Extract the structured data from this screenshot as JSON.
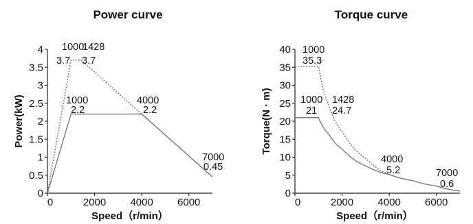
{
  "chart_data": [
    {
      "type": "line",
      "title": "Power curve",
      "xlabel": "Speed（r/min）",
      "ylabel": "Power(kW)",
      "xlim": [
        0,
        7000
      ],
      "ylim": [
        0,
        4
      ],
      "xticks": [
        "0",
        "2000",
        "4000",
        "6000"
      ],
      "yticks": [
        "0",
        "0.5",
        "1",
        "1.5",
        "2",
        "2.5",
        "3",
        "3.5",
        "4"
      ],
      "series": [
        {
          "style": "dotted",
          "x": [
            0,
            1000,
            1428,
            7000
          ],
          "y": [
            0,
            3.7,
            3.7,
            0.45
          ]
        },
        {
          "style": "solid",
          "x": [
            0,
            1000,
            4000,
            7000
          ],
          "y": [
            0,
            2.2,
            2.2,
            0.45
          ]
        }
      ],
      "annotations": [
        {
          "top": "1000",
          "bottom": "3.7"
        },
        {
          "top": "1428",
          "bottom": "3.7"
        },
        {
          "top": "1000",
          "bottom": "2.2"
        },
        {
          "top": "4000",
          "bottom": "2.2"
        },
        {
          "top": "7000",
          "bottom": "0.45"
        }
      ],
      "grid": false
    },
    {
      "type": "line",
      "title": "Torque curve",
      "xlabel": "Speed（r/min）",
      "ylabel": "Torque(N · m)",
      "xlim": [
        0,
        7000
      ],
      "ylim": [
        0,
        40
      ],
      "xticks": [
        "0",
        "2000",
        "4000",
        "6000"
      ],
      "yticks": [
        "0",
        "5",
        "10",
        "15",
        "20",
        "25",
        "30",
        "35",
        "40"
      ],
      "series": [
        {
          "style": "dotted",
          "x": [
            0,
            1000,
            1428,
            2000,
            3000,
            4000
          ],
          "y": [
            35.3,
            35.3,
            24.7,
            17.2,
            9.7,
            5.2
          ]
        },
        {
          "style": "solid",
          "x": [
            0,
            1000,
            1428,
            2000,
            3000,
            4000,
            5000,
            6000,
            7000
          ],
          "y": [
            21,
            21,
            16.5,
            12.3,
            7.6,
            5.2,
            3.5,
            2.0,
            0.6
          ]
        }
      ],
      "annotations": [
        {
          "top": "1000",
          "bottom": "35.3"
        },
        {
          "top": "1000",
          "bottom": "21"
        },
        {
          "top": "1428",
          "bottom": "24.7"
        },
        {
          "top": "4000",
          "bottom": "5.2"
        },
        {
          "top": "7000",
          "bottom": "0.6"
        }
      ],
      "grid": false
    }
  ]
}
